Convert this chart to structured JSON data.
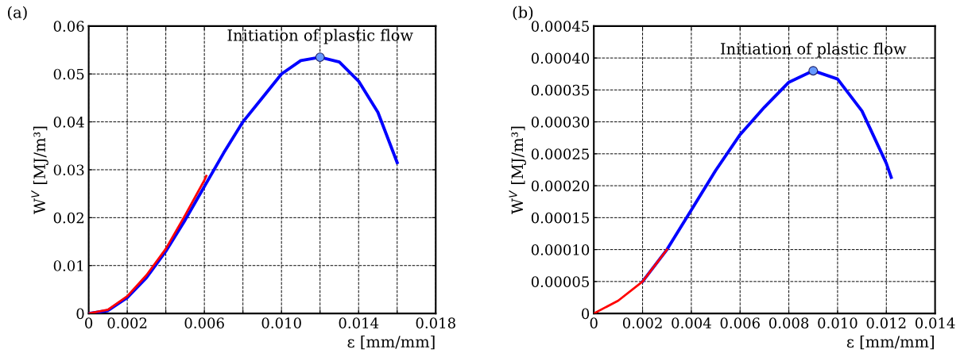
{
  "chart_data": [
    {
      "type": "line",
      "title": "(a)",
      "xlabel": "ε [mm/mm]",
      "ylabel": "W$^{V}$ [MJ/m³]",
      "xlim": [
        0,
        0.018
      ],
      "ylim": [
        0,
        0.06
      ],
      "xticks": [
        {
          "value": 0,
          "label": "0"
        },
        {
          "value": 0.002,
          "label": "0.002"
        },
        {
          "value": 0.004,
          "label": null
        },
        {
          "value": 0.006,
          "label": "0.006"
        },
        {
          "value": 0.008,
          "label": null
        },
        {
          "value": 0.01,
          "label": "0.010"
        },
        {
          "value": 0.012,
          "label": null
        },
        {
          "value": 0.014,
          "label": "0.014"
        },
        {
          "value": 0.016,
          "label": null
        },
        {
          "value": 0.018,
          "label": "0.018"
        }
      ],
      "yticks": [
        {
          "value": 0,
          "label": "0"
        },
        {
          "value": 0.01,
          "label": "0.01"
        },
        {
          "value": 0.02,
          "label": "0.02"
        },
        {
          "value": 0.03,
          "label": "0.03"
        },
        {
          "value": 0.04,
          "label": "0.04"
        },
        {
          "value": 0.05,
          "label": "0.05"
        },
        {
          "value": 0.06,
          "label": "0.06"
        }
      ],
      "grid": true,
      "line_style": "solid",
      "annotations": [
        {
          "text": "Initiation of plastic flow",
          "x": 0.012,
          "y": 0.0535
        }
      ],
      "series": [
        {
          "color": "#0000ff",
          "x": [
            0,
            0.001,
            0.002,
            0.003,
            0.004,
            0.005,
            0.006,
            0.007,
            0.008,
            0.009,
            0.01,
            0.011,
            0.012,
            0.013,
            0.014,
            0.015,
            0.016
          ],
          "values": [
            0,
            0.0006,
            0.0033,
            0.0075,
            0.013,
            0.0195,
            0.0265,
            0.0335,
            0.04,
            0.045,
            0.05,
            0.0528,
            0.0535,
            0.0525,
            0.0485,
            0.042,
            0.0315
          ]
        },
        {
          "color": "#ff0000",
          "x": [
            0,
            0.001,
            0.002,
            0.003,
            0.004,
            0.005,
            0.006,
            0.0061
          ],
          "values": [
            0,
            0.0008,
            0.0036,
            0.008,
            0.0135,
            0.0205,
            0.0278,
            0.0287
          ]
        },
        {
          "type": "scatter",
          "color": "#6699ff",
          "marker": "circle",
          "x": [
            0.012
          ],
          "values": [
            0.0535
          ]
        }
      ]
    },
    {
      "type": "line",
      "title": "(b)",
      "xlabel": "ε [mm/mm]",
      "ylabel": "W$^{V}$ [MJ/m³]",
      "xlim": [
        0,
        0.014
      ],
      "ylim": [
        0,
        0.00045
      ],
      "xticks": [
        {
          "value": 0,
          "label": "0"
        },
        {
          "value": 0.002,
          "label": "0.002"
        },
        {
          "value": 0.004,
          "label": "0.004"
        },
        {
          "value": 0.006,
          "label": "0.006"
        },
        {
          "value": 0.008,
          "label": "0.008"
        },
        {
          "value": 0.01,
          "label": "0.010"
        },
        {
          "value": 0.012,
          "label": "0.012"
        },
        {
          "value": 0.014,
          "label": "0.014"
        }
      ],
      "yticks": [
        {
          "value": 0,
          "label": "0"
        },
        {
          "value": 5e-05,
          "label": "0.00005"
        },
        {
          "value": 0.0001,
          "label": "0.00010"
        },
        {
          "value": 0.00015,
          "label": "0.00015"
        },
        {
          "value": 0.0002,
          "label": "0.00020"
        },
        {
          "value": 0.00025,
          "label": "0.00025"
        },
        {
          "value": 0.0003,
          "label": "0.00030"
        },
        {
          "value": 0.00035,
          "label": "0.00035"
        },
        {
          "value": 0.0004,
          "label": "0.00040"
        },
        {
          "value": 0.00045,
          "label": "0.00045"
        }
      ],
      "grid": true,
      "line_style": "solid",
      "annotations": [
        {
          "text": "Initiation of plastic flow",
          "x": 0.009,
          "y": 0.00038
        }
      ],
      "series": [
        {
          "color": "#0000ff",
          "x": [
            0.002,
            0.003,
            0.004,
            0.005,
            0.006,
            0.007,
            0.008,
            0.009,
            0.01,
            0.011,
            0.012,
            0.0122
          ],
          "values": [
            5e-05,
            0.0001,
            0.000162,
            0.000224,
            0.00028,
            0.000323,
            0.000362,
            0.00038,
            0.000367,
            0.000317,
            0.000235,
            0.000213
          ]
        },
        {
          "color": "#ff0000",
          "x": [
            0,
            0.001,
            0.002,
            0.003
          ],
          "values": [
            0,
            2e-05,
            5e-05,
            0.0001
          ]
        },
        {
          "type": "scatter",
          "color": "#6699ff",
          "marker": "circle",
          "x": [
            0.009
          ],
          "values": [
            0.00038
          ]
        }
      ]
    }
  ]
}
